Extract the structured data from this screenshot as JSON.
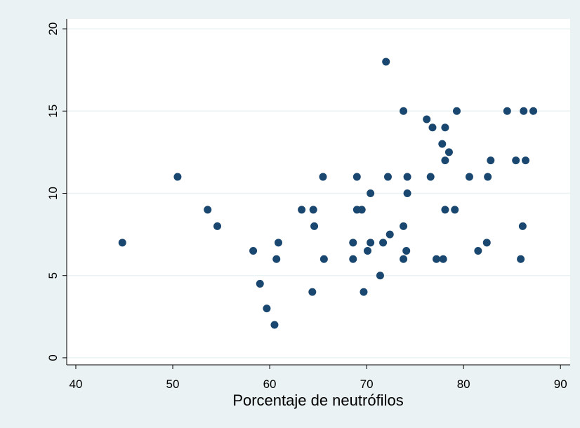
{
  "chart_data": {
    "type": "scatter",
    "x_label": "Porcentaje de neutrófilos",
    "color": "#1a476f",
    "grid": true,
    "xlim": [
      39.06,
      91.0
    ],
    "xticks": [
      40,
      50,
      60,
      70,
      80,
      90
    ],
    "ylim": [
      -0.43,
      20.6
    ],
    "yticks": [
      0,
      5,
      10,
      15,
      20
    ],
    "x": [
      44.8,
      50.5,
      53.6,
      54.6,
      58.3,
      59.0,
      59.7,
      60.5,
      60.7,
      60.9,
      63.3,
      64.5,
      64.6,
      64.4,
      65.5,
      65.6,
      68.6,
      68.6,
      69.0,
      69.0,
      69.5,
      69.7,
      70.1,
      70.4,
      70.4,
      71.4,
      71.7,
      72.0,
      72.2,
      72.4,
      73.8,
      73.8,
      73.8,
      74.1,
      74.2,
      74.2,
      76.2,
      76.6,
      76.8,
      77.2,
      77.8,
      77.9,
      78.1,
      78.1,
      78.1,
      78.5,
      79.1,
      79.3,
      80.6,
      81.5,
      82.4,
      82.5,
      82.8,
      84.5,
      85.4,
      85.9,
      86.1,
      86.2,
      86.4,
      87.2
    ],
    "values": [
      7,
      11,
      9,
      8,
      6.5,
      4.5,
      3,
      2,
      6,
      7,
      9,
      9,
      8,
      4,
      11,
      6,
      7,
      6,
      11,
      9,
      9,
      4,
      6.5,
      10,
      7,
      5,
      7,
      18,
      11,
      7.5,
      6,
      15,
      8,
      6.5,
      11,
      10,
      14.5,
      11,
      14,
      6,
      13,
      6,
      12,
      9,
      14,
      12.5,
      9,
      15,
      11,
      6.5,
      7,
      11,
      12,
      15,
      12,
      6,
      8,
      15,
      12,
      15
    ]
  }
}
